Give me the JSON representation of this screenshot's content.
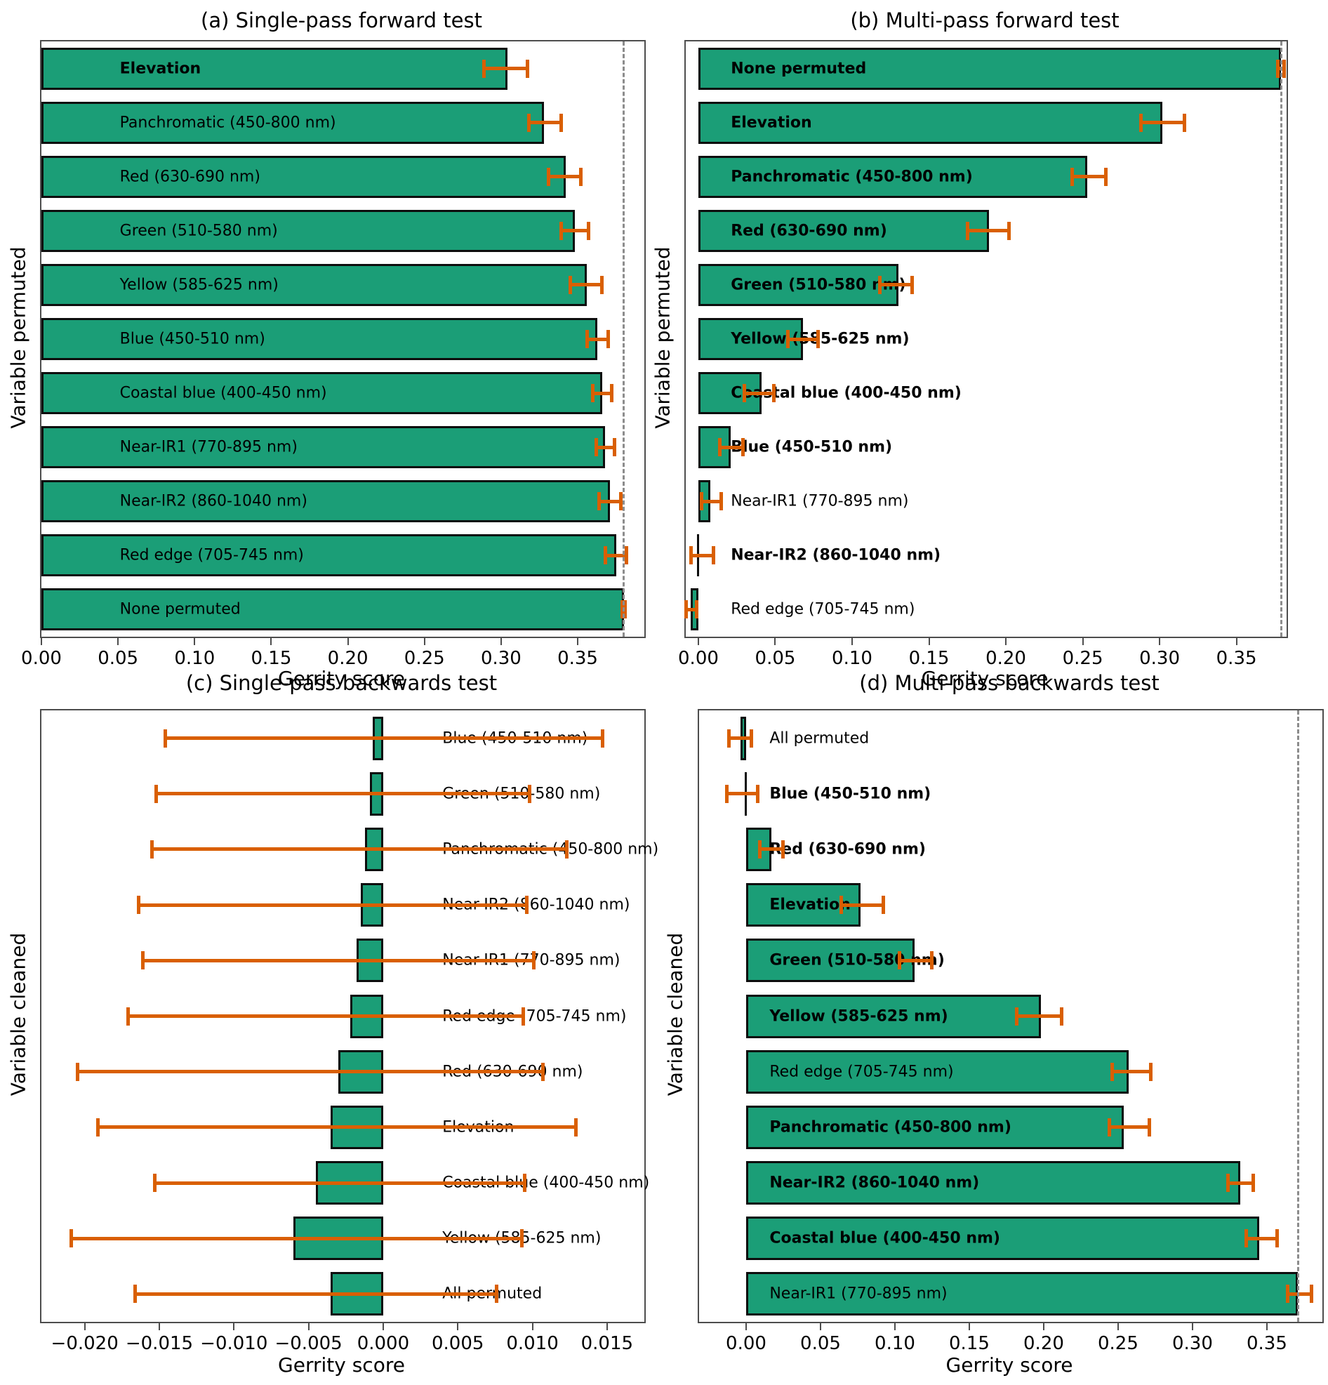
{
  "colors": {
    "bar_fill": "#1b9e77",
    "bar_edge": "#0d0d0d",
    "error_bar": "#d95f02",
    "dashed_reference": "#8c8c8c",
    "spine": "#4d4d4d",
    "text": "#000000"
  },
  "chart_data": [
    {
      "id": "a",
      "type": "bar",
      "orientation": "horizontal",
      "title": "(a) Single-pass forward test",
      "xlabel": "Gerrity score",
      "ylabel": "Variable permuted",
      "xlim": [
        0.0,
        0.3935
      ],
      "xticks": [
        0.0,
        0.05,
        0.1,
        0.15,
        0.2,
        0.25,
        0.3,
        0.35
      ],
      "xtick_labels": [
        "0.00",
        "0.05",
        "0.10",
        "0.15",
        "0.20",
        "0.25",
        "0.30",
        "0.35"
      ],
      "dashed_x": 0.38,
      "label_x": 0.13,
      "grid": false,
      "rows": [
        {
          "label": "Elevation",
          "bold": true,
          "value": 0.304,
          "err": [
            0.289,
            0.317
          ]
        },
        {
          "label": "Panchromatic (450-800 nm)",
          "bold": false,
          "value": 0.328,
          "err": [
            0.318,
            0.339
          ]
        },
        {
          "label": "Red (630-690 nm)",
          "bold": false,
          "value": 0.342,
          "err": [
            0.331,
            0.352
          ]
        },
        {
          "label": "Green (510-580 nm)",
          "bold": false,
          "value": 0.348,
          "err": [
            0.339,
            0.357
          ]
        },
        {
          "label": "Yellow (585-625 nm)",
          "bold": false,
          "value": 0.356,
          "err": [
            0.345,
            0.366
          ]
        },
        {
          "label": "Blue (450-510 nm)",
          "bold": false,
          "value": 0.363,
          "err": [
            0.356,
            0.37
          ]
        },
        {
          "label": "Coastal blue (400-450 nm)",
          "bold": false,
          "value": 0.366,
          "err": [
            0.36,
            0.372
          ]
        },
        {
          "label": "Near-IR1 (770-895 nm)",
          "bold": false,
          "value": 0.368,
          "err": [
            0.362,
            0.374
          ]
        },
        {
          "label": "Near-IR2 (860-1040 nm)",
          "bold": false,
          "value": 0.371,
          "err": [
            0.364,
            0.378
          ]
        },
        {
          "label": "Red edge (705-745 nm)",
          "bold": false,
          "value": 0.375,
          "err": [
            0.368,
            0.382
          ]
        },
        {
          "label": "None permuted",
          "bold": false,
          "value": 0.38,
          "err": [
            0.379,
            0.381
          ]
        }
      ]
    },
    {
      "id": "b",
      "type": "bar",
      "orientation": "horizontal",
      "title": "(b) Multi-pass forward test",
      "xlabel": "Gerrity score",
      "ylabel": "Variable permuted",
      "xlim": [
        -0.0082,
        0.3826
      ],
      "xticks": [
        0.0,
        0.05,
        0.1,
        0.15,
        0.2,
        0.25,
        0.3,
        0.35
      ],
      "xtick_labels": [
        "0.00",
        "0.05",
        "0.10",
        "0.15",
        "0.20",
        "0.25",
        "0.30",
        "0.35"
      ],
      "dashed_x": 0.379,
      "label_x": 0.075,
      "grid": false,
      "rows": [
        {
          "label": "None permuted",
          "bold": true,
          "value": 0.379,
          "err": [
            0.377,
            0.381
          ]
        },
        {
          "label": "Elevation",
          "bold": true,
          "value": 0.302,
          "err": [
            0.288,
            0.316
          ]
        },
        {
          "label": "Panchromatic (450-800 nm)",
          "bold": true,
          "value": 0.253,
          "err": [
            0.243,
            0.265
          ]
        },
        {
          "label": "Red (630-690 nm)",
          "bold": true,
          "value": 0.189,
          "err": [
            0.175,
            0.202
          ]
        },
        {
          "label": "Green (510-580 nm)",
          "bold": true,
          "value": 0.13,
          "err": [
            0.118,
            0.139
          ]
        },
        {
          "label": "Yellow (585-625 nm)",
          "bold": true,
          "value": 0.068,
          "err": [
            0.058,
            0.078
          ]
        },
        {
          "label": "Coastal blue (400-450 nm)",
          "bold": true,
          "value": 0.041,
          "err": [
            0.03,
            0.049
          ]
        },
        {
          "label": "Blue (450-510 nm)",
          "bold": true,
          "value": 0.021,
          "err": [
            0.014,
            0.029
          ]
        },
        {
          "label": "Near-IR1 (770-895 nm)",
          "bold": false,
          "value": 0.008,
          "err": [
            0.002,
            0.015
          ]
        },
        {
          "label": "Near-IR2 (860-1040 nm)",
          "bold": true,
          "value": 0.0,
          "err": [
            -0.005,
            0.01
          ]
        },
        {
          "label": "Red edge (705-745 nm)",
          "bold": false,
          "value": -0.005,
          "err": [
            -0.008,
            -0.001
          ]
        }
      ]
    },
    {
      "id": "c",
      "type": "bar",
      "orientation": "horizontal",
      "title": "(c) Single-pass backwards test",
      "xlabel": "Gerrity score",
      "ylabel": "Variable cleaned",
      "xlim": [
        -0.0229,
        0.0175
      ],
      "xticks": [
        -0.02,
        -0.015,
        -0.01,
        -0.005,
        0.0,
        0.005,
        0.01,
        0.015
      ],
      "xtick_labels": [
        "−0.020",
        "−0.015",
        "−0.010",
        "−0.005",
        "0.000",
        "0.005",
        "0.010",
        "0.015"
      ],
      "dashed_x": null,
      "label_x": 0.665,
      "grid": false,
      "rows": [
        {
          "label": "Blue (450-510 nm)",
          "bold": false,
          "value": -0.0007,
          "err": [
            -0.0146,
            0.0147
          ]
        },
        {
          "label": "Green (510-580 nm)",
          "bold": false,
          "value": -0.0009,
          "err": [
            -0.0152,
            0.0098
          ]
        },
        {
          "label": "Panchromatic (450-800 nm)",
          "bold": false,
          "value": -0.0012,
          "err": [
            -0.0155,
            0.0123
          ]
        },
        {
          "label": "Near-IR2 (860-1040 nm)",
          "bold": false,
          "value": -0.0015,
          "err": [
            -0.0164,
            0.0096
          ]
        },
        {
          "label": "Near-IR1 (770-895 nm)",
          "bold": false,
          "value": -0.0018,
          "err": [
            -0.0161,
            0.0101
          ]
        },
        {
          "label": "Red edge (705-745 nm)",
          "bold": false,
          "value": -0.0022,
          "err": [
            -0.0171,
            0.0094
          ]
        },
        {
          "label": "Red (630-690 nm)",
          "bold": false,
          "value": -0.003,
          "err": [
            -0.0205,
            0.0107
          ]
        },
        {
          "label": "Elevation",
          "bold": false,
          "value": -0.0035,
          "err": [
            -0.0191,
            0.0129
          ]
        },
        {
          "label": "Coastal blue (400-450 nm)",
          "bold": false,
          "value": -0.0045,
          "err": [
            -0.0153,
            0.0095
          ]
        },
        {
          "label": "Yellow (585-625 nm)",
          "bold": false,
          "value": -0.006,
          "err": [
            -0.0209,
            0.0093
          ]
        },
        {
          "label": "All permuted",
          "bold": false,
          "value": -0.0035,
          "err": [
            -0.0166,
            0.0076
          ]
        }
      ]
    },
    {
      "id": "d",
      "type": "bar",
      "orientation": "horizontal",
      "title": "(d) Multi-pass backwards test",
      "xlabel": "Gerrity score",
      "ylabel": "Variable cleaned",
      "xlim": [
        -0.0316,
        0.3873
      ],
      "xticks": [
        0.0,
        0.05,
        0.1,
        0.15,
        0.2,
        0.25,
        0.3,
        0.35
      ],
      "xtick_labels": [
        "0.00",
        "0.05",
        "0.10",
        "0.15",
        "0.20",
        "0.25",
        "0.30",
        "0.35"
      ],
      "dashed_x": 0.371,
      "label_x": 0.113,
      "grid": false,
      "rows": [
        {
          "label": "All permuted",
          "bold": false,
          "value": -0.004,
          "err": [
            -0.0117,
            0.0037
          ]
        },
        {
          "label": "Blue (450-510 nm)",
          "bold": true,
          "value": 0.0,
          "err": [
            -0.013,
            0.008
          ]
        },
        {
          "label": "Red (630-690 nm)",
          "bold": true,
          "value": 0.017,
          "err": [
            0.009,
            0.025
          ]
        },
        {
          "label": "Elevation",
          "bold": true,
          "value": 0.077,
          "err": [
            0.064,
            0.092
          ]
        },
        {
          "label": "Green (510-580 nm)",
          "bold": true,
          "value": 0.113,
          "err": [
            0.103,
            0.125
          ]
        },
        {
          "label": "Yellow (585-625 nm)",
          "bold": true,
          "value": 0.198,
          "err": [
            0.182,
            0.212
          ]
        },
        {
          "label": "Red edge (705-745 nm)",
          "bold": false,
          "value": 0.257,
          "err": [
            0.246,
            0.272
          ]
        },
        {
          "label": "Panchromatic (450-800 nm)",
          "bold": true,
          "value": 0.254,
          "err": [
            0.244,
            0.271
          ]
        },
        {
          "label": "Near-IR2 (860-1040 nm)",
          "bold": true,
          "value": 0.332,
          "err": [
            0.324,
            0.341
          ]
        },
        {
          "label": "Coastal blue (400-450 nm)",
          "bold": true,
          "value": 0.345,
          "err": [
            0.336,
            0.357
          ]
        },
        {
          "label": "Near-IR1 (770-895 nm)",
          "bold": false,
          "value": 0.371,
          "err": [
            0.364,
            0.38
          ]
        }
      ]
    }
  ]
}
